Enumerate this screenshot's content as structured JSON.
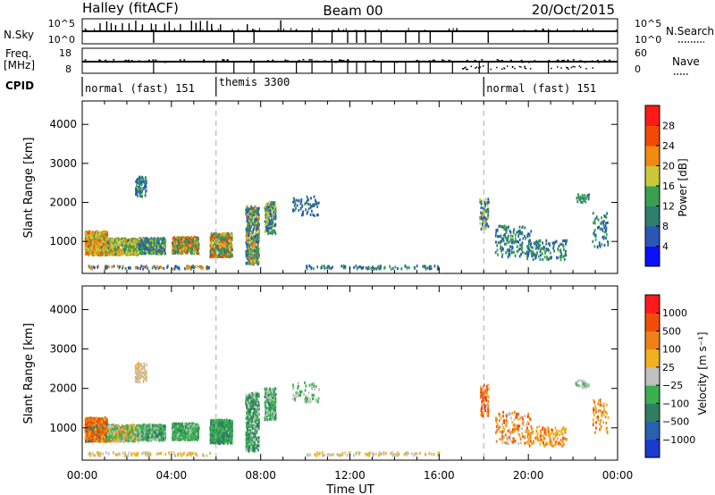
{
  "header": {
    "station": "Halley (fitACF)",
    "beam": "Beam 00",
    "date": "20/Oct/2015"
  },
  "strips": {
    "nsky_label": "N.Sky",
    "nsky_ticks": [
      "10^5",
      "10^0"
    ],
    "nsearch_label": "N.Search",
    "nsearch_ticks": [
      "10^5",
      "10^0"
    ],
    "freq_label_1": "Freq.",
    "freq_label_2": "[MHz]",
    "freq_ticks": [
      "18",
      "8"
    ],
    "nave_label": "Nave",
    "nave_ticks": [
      "60",
      "0"
    ],
    "cpid_label": "CPID"
  },
  "cpid_segments": [
    {
      "label": "normal (fast) 151",
      "start": 0,
      "end": 6.0
    },
    {
      "label": "themis 3300",
      "start": 6.0,
      "end": 18.0
    },
    {
      "label": "normal (fast) 151",
      "start": 18.0,
      "end": 24.0
    }
  ],
  "chart_data": [
    {
      "type": "heatmap",
      "name": "power",
      "ylabel": "Slant Range [km]",
      "xlabel": "Time UT",
      "xlim": [
        0,
        24
      ],
      "ylim": [
        180,
        4600
      ],
      "yticks": [
        "1000",
        "2000",
        "3000",
        "4000"
      ],
      "colorbar_label": "Power [dB]",
      "colorbar_ticks": [
        "4",
        "8",
        "12",
        "16",
        "20",
        "24",
        "28"
      ],
      "colors": [
        "#0a10ff",
        "#2a56b8",
        "#2e7e70",
        "#3aa050",
        "#c8c83a",
        "#f08a10",
        "#f04a08",
        "#ff1a1a"
      ]
    },
    {
      "type": "heatmap",
      "name": "velocity",
      "ylabel": "Slant Range [km]",
      "xlabel": "Time UT",
      "xlim": [
        0,
        24
      ],
      "ylim": [
        180,
        4600
      ],
      "yticks": [
        "1000",
        "2000",
        "3000",
        "4000"
      ],
      "colorbar_label": "Velocity [m s⁻¹]",
      "colorbar_ticks": [
        "1000",
        "500",
        "100",
        "25",
        "−25",
        "−100",
        "−500",
        "−1000"
      ],
      "colors": [
        "#1a3ad0",
        "#2a60b0",
        "#2e7e62",
        "#3ab050",
        "#c0c0c0",
        "#f0b020",
        "#f08018",
        "#f04e08",
        "#ff1a1a"
      ]
    }
  ],
  "x_axis": {
    "ticks": [
      "00:00",
      "04:00",
      "08:00",
      "12:00",
      "16:00",
      "20:00",
      "00:00"
    ],
    "label": "Time UT"
  }
}
